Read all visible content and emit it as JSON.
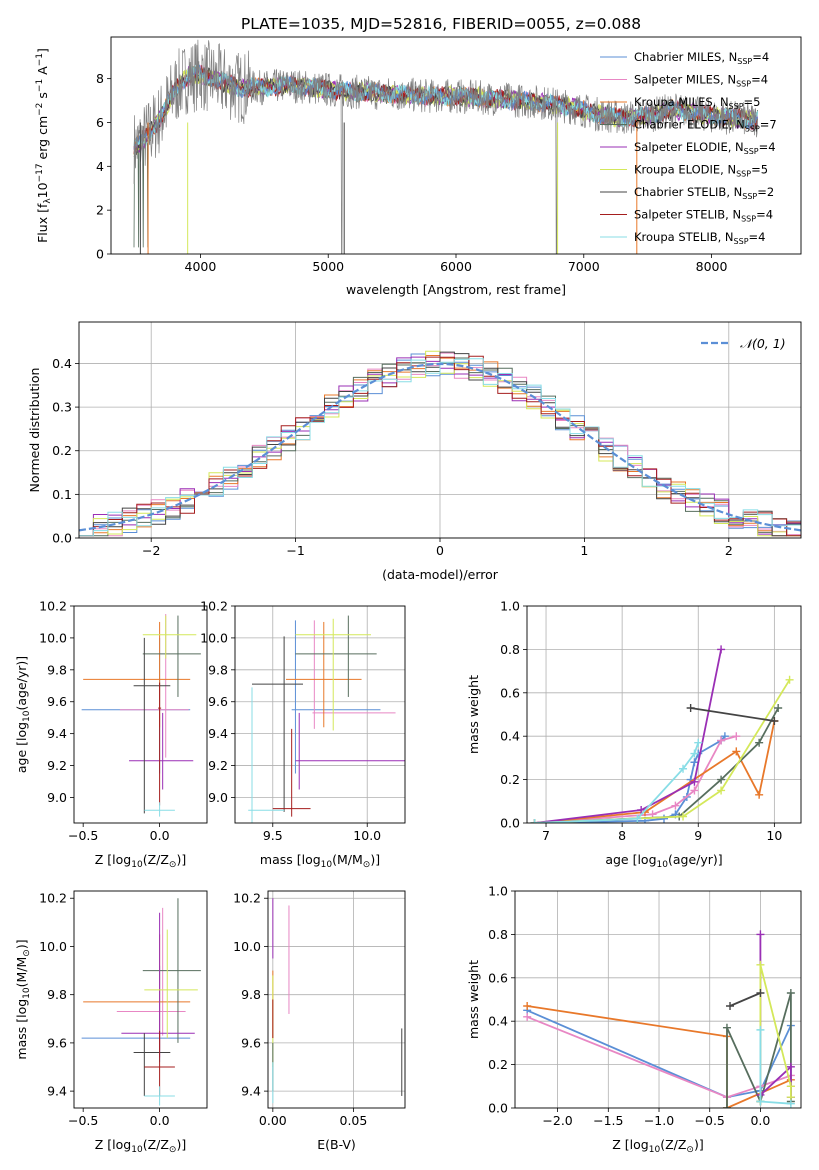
{
  "figure_title": "PLATE=1035, MJD=52816, FIBERID=0055, z=0.088",
  "colors": {
    "c0": "#5b8fd6",
    "c1": "#e887c4",
    "c2": "#e8782a",
    "c3": "#576e5e",
    "c4": "#9a2fb5",
    "c5": "#d4e85a",
    "c6": "#444444",
    "c7": "#a51e1e",
    "c8": "#88dde6"
  },
  "chart_data": [
    {
      "id": "spectrum",
      "type": "line",
      "title": "PLATE=1035, MJD=52816, FIBERID=0055, z=0.088",
      "xlabel": "wavelength [Angstrom, rest frame]",
      "ylabel_parts": [
        "Flux [f",
        "λ",
        "10",
        "−17",
        " erg cm",
        "−2",
        " s",
        "−1",
        " A",
        "−1",
        "]"
      ],
      "xlim": [
        3300,
        8700
      ],
      "ylim": [
        0,
        9.9
      ],
      "xticks": [
        4000,
        5000,
        6000,
        7000,
        8000
      ],
      "yticks": [
        0,
        2,
        4,
        6,
        8
      ],
      "legend_position": "right",
      "legend": [
        {
          "name": "Chabrier MILES, N",
          "sub": "SSP",
          "tail": "=4"
        },
        {
          "name": "Salpeter MILES, N",
          "sub": "SSP",
          "tail": "=4"
        },
        {
          "name": "Kroupa MILES, N",
          "sub": "SSP",
          "tail": "=5"
        },
        {
          "name": "Chabrier ELODIE, N",
          "sub": "SSP",
          "tail": "=7"
        },
        {
          "name": "Salpeter ELODIE, N",
          "sub": "SSP",
          "tail": "=4"
        },
        {
          "name": "Kroupa ELODIE, N",
          "sub": "SSP",
          "tail": "=5"
        },
        {
          "name": "Chabrier STELIB, N",
          "sub": "SSP",
          "tail": "=2"
        },
        {
          "name": "Salpeter STELIB, N",
          "sub": "SSP",
          "tail": "=4"
        },
        {
          "name": "Kroupa STELIB, N",
          "sub": "SSP",
          "tail": "=4"
        }
      ],
      "continuum": {
        "x": [
          3500,
          3600,
          3700,
          3800,
          3900,
          4000,
          4100,
          4200,
          4300,
          4500,
          4700,
          5000,
          5200,
          5500,
          5800,
          6000,
          6300,
          6500,
          6700,
          6900,
          7100,
          7300,
          7500,
          7700,
          8000,
          8200,
          8350
        ],
        "y": [
          4.9,
          5.5,
          6.3,
          7.5,
          8.1,
          8.2,
          8.0,
          7.8,
          7.6,
          7.6,
          7.7,
          7.5,
          7.4,
          7.3,
          7.2,
          7.2,
          7.1,
          7.0,
          6.9,
          6.7,
          6.4,
          6.2,
          6.3,
          6.6,
          6.3,
          6.2,
          6.1
        ]
      }
    },
    {
      "id": "residuals",
      "type": "histogram",
      "xlabel": "(data-model)/error",
      "ylabel": "Normed distribution",
      "xlim": [
        -2.5,
        2.5
      ],
      "ylim": [
        0,
        0.495
      ],
      "xticks": [
        -2,
        -1,
        0,
        1,
        2
      ],
      "yticks": [
        0.0,
        0.1,
        0.2,
        0.3,
        0.4
      ],
      "legend": [
        {
          "name": "𝒩(0, 1)"
        }
      ],
      "legend_position": "top-right",
      "bin_width": 0.1
    },
    {
      "id": "age_vs_Z",
      "type": "errorbar",
      "xlabel_parts": [
        "Z [log",
        "10",
        "(Z/Z",
        "⊙",
        ")]"
      ],
      "ylabel_parts": [
        "age  [log",
        "10",
        "(age/yr)]"
      ],
      "xlim": [
        -0.56,
        0.31
      ],
      "ylim": [
        8.84,
        10.2
      ],
      "xticks": [
        -0.5,
        0.0
      ],
      "yticks": [
        9.0,
        9.2,
        9.4,
        9.6,
        9.8,
        10.0,
        10.2
      ],
      "points": [
        {
          "c": "c0",
          "x": 0.0,
          "y": 9.55,
          "xerr": [
            0.51,
            0.2
          ],
          "yerr": [
            0.4,
            0.45
          ]
        },
        {
          "c": "c1",
          "x": 0.04,
          "y": 9.55,
          "xerr": [
            0.3,
            0.15
          ],
          "yerr": [
            0.3,
            0.6
          ]
        },
        {
          "c": "c2",
          "x": 0.0,
          "y": 9.74,
          "xerr": [
            0.5,
            0.2
          ],
          "yerr": [
            0.3,
            0.36
          ]
        },
        {
          "c": "c3",
          "x": 0.12,
          "y": 9.9,
          "xerr": [
            0.23,
            0.15
          ],
          "yerr": [
            0.27,
            0.24
          ]
        },
        {
          "c": "c4",
          "x": 0.02,
          "y": 9.23,
          "xerr": [
            0.22,
            0.2
          ],
          "yerr": [
            0.18,
            0.3
          ]
        },
        {
          "c": "c5",
          "x": 0.04,
          "y": 10.02,
          "xerr": [
            0.15,
            0.2
          ],
          "yerr": [
            0.15,
            0.12
          ]
        },
        {
          "c": "c6",
          "x": -0.1,
          "y": 9.7,
          "xerr": [
            0.07,
            0.17
          ],
          "yerr": [
            0.8,
            0.3
          ]
        },
        {
          "c": "c7",
          "x": 0.0,
          "y": 9.56,
          "xerr": [
            0.01,
            0.01
          ],
          "yerr": [
            0.61,
            0.16
          ]
        },
        {
          "c": "c8",
          "x": 0.0,
          "y": 8.92,
          "xerr": [
            0.1,
            0.1
          ],
          "yerr": [
            0.04,
            0.05
          ]
        }
      ]
    },
    {
      "id": "age_vs_mass",
      "type": "errorbar",
      "xlabel_parts": [
        "mass [log",
        "10",
        "(M/M",
        "⊙",
        ")]"
      ],
      "xlim": [
        9.3,
        10.2
      ],
      "ylim": [
        8.84,
        10.2
      ],
      "xticks": [
        9.5,
        10.0
      ],
      "yticks": [
        9.0,
        9.2,
        9.4,
        9.6,
        9.8,
        10.0,
        10.2
      ],
      "points": [
        {
          "c": "c0",
          "x": 9.62,
          "y": 9.55,
          "xerr": [
            0.02,
            0.45
          ],
          "yerr": [
            0.4,
            0.56
          ]
        },
        {
          "c": "c1",
          "x": 9.72,
          "y": 9.53,
          "xerr": [
            0.01,
            0.43
          ],
          "yerr": [
            0.1,
            0.58
          ]
        },
        {
          "c": "c2",
          "x": 9.77,
          "y": 9.74,
          "xerr": [
            0.2,
            0.2
          ],
          "yerr": [
            0.3,
            0.36
          ]
        },
        {
          "c": "c3",
          "x": 9.9,
          "y": 9.9,
          "xerr": [
            0.28,
            0.15
          ],
          "yerr": [
            0.27,
            0.24
          ]
        },
        {
          "c": "c4",
          "x": 9.64,
          "y": 9.23,
          "xerr": [
            0.02,
            0.56
          ],
          "yerr": [
            0.18,
            0.3
          ]
        },
        {
          "c": "c5",
          "x": 9.82,
          "y": 10.02,
          "xerr": [
            0.2,
            0.2
          ],
          "yerr": [
            0.6,
            0.1
          ]
        },
        {
          "c": "c6",
          "x": 9.56,
          "y": 9.71,
          "xerr": [
            0.17,
            0.1
          ],
          "yerr": [
            0.8,
            0.3
          ]
        },
        {
          "c": "c7",
          "x": 9.6,
          "y": 8.93,
          "xerr": [
            0.1,
            0.1
          ],
          "yerr": [
            0.05,
            0.5
          ]
        },
        {
          "c": "c8",
          "x": 9.39,
          "y": 8.92,
          "xerr": [
            0.02,
            0.17
          ],
          "yerr": [
            0.1,
            0.77
          ]
        }
      ]
    },
    {
      "id": "weight_vs_age",
      "type": "line",
      "ylabel": "mass weight",
      "xlabel_parts": [
        "age  [log",
        "10",
        "(age/yr)]"
      ],
      "xlim": [
        6.75,
        10.35
      ],
      "ylim": [
        0,
        1
      ],
      "xticks": [
        7,
        8,
        9,
        10
      ],
      "yticks": [
        0.0,
        0.2,
        0.4,
        0.6,
        0.8,
        1.0
      ],
      "series": [
        {
          "c": "c0",
          "x": [
            6.85,
            8.3,
            8.55,
            8.7,
            8.85,
            8.9,
            8.95,
            9.0,
            9.3,
            9.35
          ],
          "y": [
            0.0,
            0.01,
            0.02,
            0.04,
            0.12,
            0.2,
            0.28,
            0.32,
            0.38,
            0.4
          ]
        },
        {
          "c": "c1",
          "x": [
            6.85,
            8.4,
            8.7,
            8.95,
            9.3,
            9.5
          ],
          "y": [
            0.0,
            0.04,
            0.08,
            0.15,
            0.38,
            0.4
          ]
        },
        {
          "c": "c2",
          "x": [
            6.85,
            8.3,
            9.5,
            9.8,
            10.0
          ],
          "y": [
            0.0,
            0.05,
            0.33,
            0.13,
            0.47
          ]
        },
        {
          "c": "c3",
          "x": [
            6.85,
            8.75,
            9.3,
            9.8,
            10.05
          ],
          "y": [
            0.0,
            0.03,
            0.2,
            0.37,
            0.53
          ]
        },
        {
          "c": "c4",
          "x": [
            6.85,
            8.25,
            8.95,
            9.3
          ],
          "y": [
            0.0,
            0.06,
            0.19,
            0.8
          ]
        },
        {
          "c": "c5",
          "x": [
            6.85,
            8.8,
            9.3,
            10.2
          ],
          "y": [
            0.0,
            0.03,
            0.15,
            0.66
          ]
        },
        {
          "c": "c6",
          "x": [
            8.9,
            10.0
          ],
          "y": [
            0.53,
            0.47
          ]
        },
        {
          "c": "c8",
          "x": [
            6.85,
            8.2,
            8.8,
            8.95,
            9.0
          ],
          "y": [
            0.0,
            0.02,
            0.25,
            0.32,
            0.37
          ]
        }
      ]
    },
    {
      "id": "mass_vs_Z",
      "type": "errorbar",
      "xlabel_parts": [
        "Z [log",
        "10",
        "(Z/Z",
        "⊙",
        ")]"
      ],
      "ylabel_parts": [
        "mass [log",
        "10",
        "(M/M",
        "⊙",
        ")]"
      ],
      "xlim": [
        -0.56,
        0.31
      ],
      "ylim": [
        9.33,
        10.23
      ],
      "xticks": [
        -0.5,
        0.0
      ],
      "yticks": [
        9.4,
        9.6,
        9.8,
        10.0,
        10.2
      ],
      "points": [
        {
          "c": "c0",
          "x": 0.0,
          "y": 9.62,
          "xerr": [
            0.51,
            0.2
          ],
          "yerr": [
            0.1,
            0.3
          ]
        },
        {
          "c": "c1",
          "x": 0.02,
          "y": 9.73,
          "xerr": [
            0.3,
            0.15
          ],
          "yerr": [
            0.1,
            0.43
          ]
        },
        {
          "c": "c2",
          "x": 0.0,
          "y": 9.77,
          "xerr": [
            0.5,
            0.2
          ],
          "yerr": [
            0.2,
            0.28
          ]
        },
        {
          "c": "c3",
          "x": 0.12,
          "y": 9.9,
          "xerr": [
            0.23,
            0.15
          ],
          "yerr": [
            0.3,
            0.3
          ]
        },
        {
          "c": "c4",
          "x": 0.0,
          "y": 9.64,
          "xerr": [
            0.25,
            0.23
          ],
          "yerr": [
            0.1,
            0.5
          ]
        },
        {
          "c": "c5",
          "x": 0.05,
          "y": 9.82,
          "xerr": [
            0.15,
            0.2
          ],
          "yerr": [
            0.2,
            0.25
          ]
        },
        {
          "c": "c6",
          "x": -0.1,
          "y": 9.56,
          "xerr": [
            0.07,
            0.17
          ],
          "yerr": [
            0.18,
            0.08
          ]
        },
        {
          "c": "c7",
          "x": 0.0,
          "y": 9.5,
          "xerr": [
            0.1,
            0.1
          ],
          "yerr": [
            0.12,
            0.15
          ]
        },
        {
          "c": "c8",
          "x": 0.0,
          "y": 9.38,
          "xerr": [
            0.1,
            0.1
          ],
          "yerr": [
            0.04,
            0.04
          ]
        }
      ]
    },
    {
      "id": "mass_vs_ebv",
      "type": "errorbar",
      "xlabel": "E(B-V)",
      "xlim": [
        -0.003,
        0.082
      ],
      "ylim": [
        9.33,
        10.23
      ],
      "xticks": [
        0.0,
        0.05
      ],
      "yticks": [
        9.4,
        9.6,
        9.8,
        10.0,
        10.2
      ],
      "points": [
        {
          "c": "c4",
          "x": 0.0,
          "y": 10.05,
          "xerr": [
            0,
            0
          ],
          "yerr": [
            0.1,
            0.15
          ]
        },
        {
          "c": "c1",
          "x": 0.01,
          "y": 9.87,
          "xerr": [
            0,
            0
          ],
          "yerr": [
            0.15,
            0.3
          ]
        },
        {
          "c": "c2",
          "x": 0.0,
          "y": 9.85,
          "xerr": [
            0,
            0
          ],
          "yerr": [
            0.23,
            0.05
          ]
        },
        {
          "c": "c5",
          "x": 0.0,
          "y": 9.7,
          "xerr": [
            0,
            0
          ],
          "yerr": [
            0.2,
            0.18
          ]
        },
        {
          "c": "c3",
          "x": 0.0,
          "y": 9.5,
          "xerr": [
            0,
            0
          ],
          "yerr": [
            0.1,
            0.1
          ]
        },
        {
          "c": "c7",
          "x": 0.0,
          "y": 9.7,
          "xerr": [
            0,
            0
          ],
          "yerr": [
            0.08,
            0.08
          ]
        },
        {
          "c": "c8",
          "x": 0.0,
          "y": 9.42,
          "xerr": [
            0,
            0
          ],
          "yerr": [
            0.07,
            0.1
          ]
        },
        {
          "c": "c6",
          "x": 0.08,
          "y": 9.52,
          "xerr": [
            0,
            0
          ],
          "yerr": [
            0.14,
            0.14
          ]
        }
      ]
    },
    {
      "id": "weight_vs_Z",
      "type": "line",
      "ylabel": "mass weight",
      "xlabel_parts": [
        "Z [log",
        "10",
        "(Z/Z",
        "⊙",
        ")]"
      ],
      "xlim": [
        -2.42,
        0.4
      ],
      "ylim": [
        0,
        1
      ],
      "xticks": [
        -2.0,
        -1.5,
        -1.0,
        -0.5,
        0.0
      ],
      "yticks": [
        0.0,
        0.2,
        0.4,
        0.6,
        0.8,
        1.0
      ],
      "series": [
        {
          "c": "c0",
          "x": [
            -2.3,
            -0.33,
            0.0,
            0.3
          ],
          "y": [
            0.45,
            0.05,
            0.08,
            0.38
          ]
        },
        {
          "c": "c1",
          "x": [
            -2.3,
            -0.33,
            0.0,
            0.3,
            0.3
          ],
          "y": [
            0.42,
            0.05,
            0.1,
            0.15,
            0.1
          ]
        },
        {
          "c": "c2",
          "x": [
            -2.3,
            -0.33,
            -0.33,
            0.3
          ],
          "y": [
            0.47,
            0.33,
            0.0,
            0.13
          ]
        },
        {
          "c": "c3",
          "x": [
            -0.33,
            -0.33,
            0.0,
            0.0,
            0.3,
            0.3
          ],
          "y": [
            0.0,
            0.37,
            0.03,
            0.03,
            0.53,
            0.03
          ]
        },
        {
          "c": "c4",
          "x": [
            0.0,
            0.0,
            0.3,
            0.3
          ],
          "y": [
            0.8,
            0.06,
            0.19,
            0.05
          ]
        },
        {
          "c": "c5",
          "x": [
            0.0,
            0.0,
            0.3,
            0.3
          ],
          "y": [
            0.03,
            0.66,
            0.1,
            0.05
          ]
        },
        {
          "c": "c6",
          "x": [
            -0.3,
            0.0
          ],
          "y": [
            0.47,
            0.53
          ]
        },
        {
          "c": "c8",
          "x": [
            0.0,
            0.0,
            0.3
          ],
          "y": [
            0.36,
            0.03,
            0.02
          ]
        }
      ]
    }
  ]
}
